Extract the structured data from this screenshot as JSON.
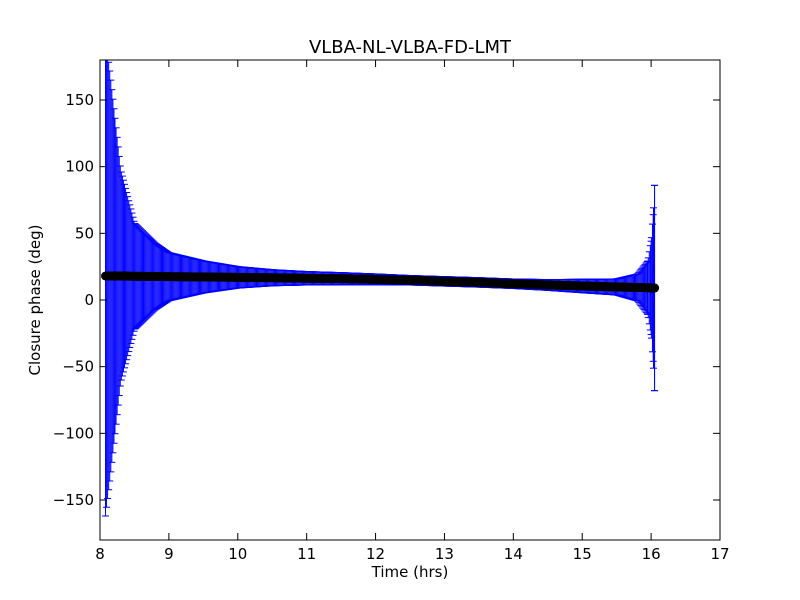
{
  "chart_data": {
    "type": "scatter",
    "title": "VLBA-NL-VLBA-FD-LMT",
    "xlabel": "Time (hrs)",
    "ylabel": "Closure phase (deg)",
    "xlim": [
      8,
      17
    ],
    "ylim": [
      -180,
      180
    ],
    "x_ticks": [
      8,
      9,
      10,
      11,
      12,
      13,
      14,
      15,
      16,
      17
    ],
    "y_ticks": [
      -150,
      -100,
      -50,
      0,
      50,
      100,
      150
    ],
    "grid": false,
    "legend": "none",
    "series": [
      {
        "marker_color": "#000000",
        "errorbar_color": "#0000ff",
        "x": [
          8.08,
          8.15,
          8.3,
          8.5,
          8.8,
          9.0,
          9.5,
          10.0,
          10.5,
          11.0,
          11.5,
          12.0,
          12.5,
          13.0,
          13.5,
          14.0,
          14.5,
          15.0,
          15.5,
          15.8,
          15.95,
          16.0,
          16.03,
          16.05
        ],
        "y": [
          18,
          18,
          18,
          17.8,
          17.7,
          17.5,
          17.3,
          17.0,
          16.7,
          16.3,
          16.0,
          15.5,
          14.8,
          14.0,
          13.2,
          12.2,
          11.3,
          10.5,
          9.8,
          9.4,
          9.2,
          9.1,
          9.0,
          9.0
        ],
        "yerr": [
          180,
          150,
          80,
          40,
          25,
          18,
          12,
          8,
          6,
          5,
          4.5,
          4,
          3.5,
          3.5,
          3.5,
          3.5,
          4,
          5,
          6,
          10,
          20,
          35,
          55,
          77
        ]
      }
    ]
  }
}
